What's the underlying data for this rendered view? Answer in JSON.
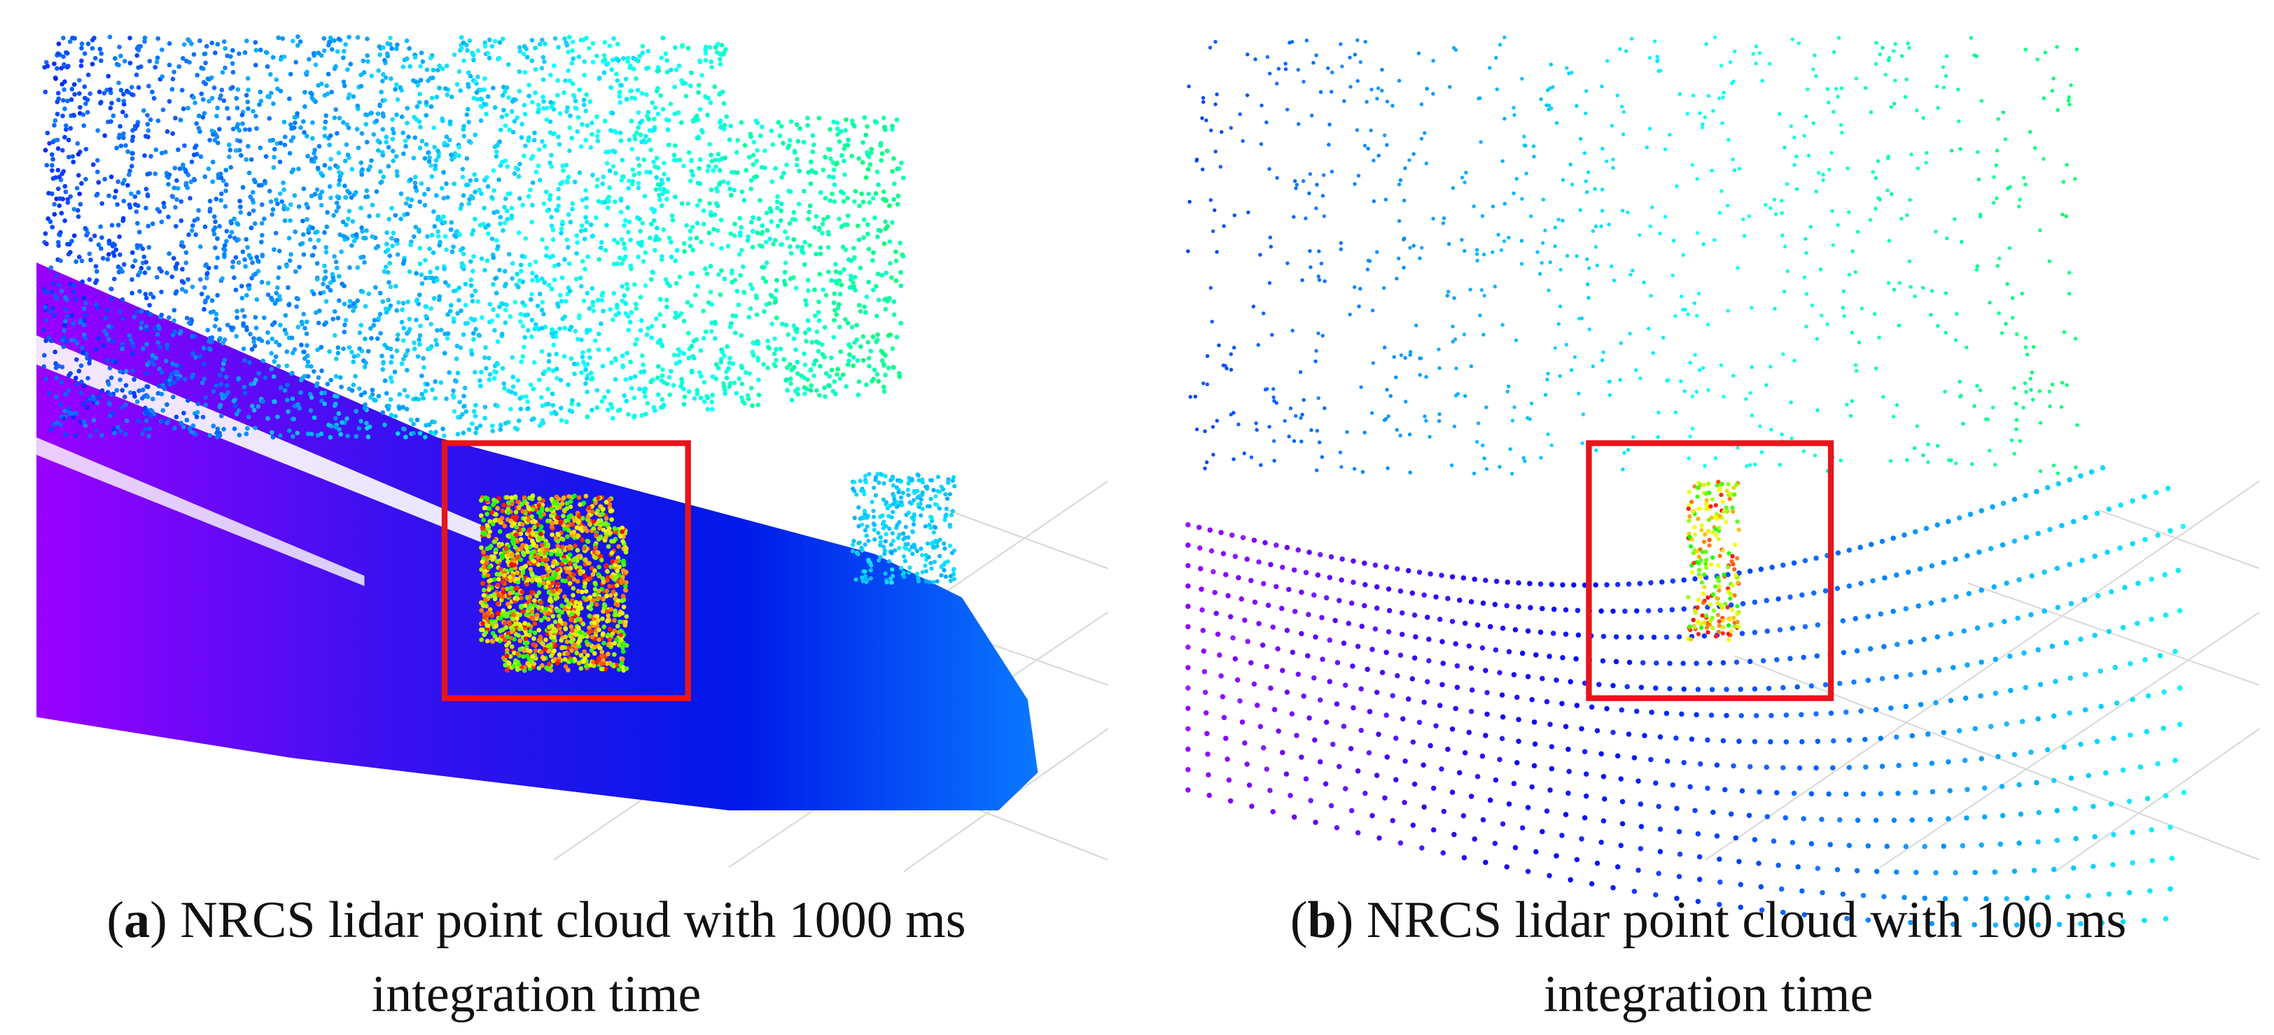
{
  "figure": {
    "panels": [
      {
        "caption_parts": [
          "(",
          "a",
          ") NRCS lidar point cloud with 1000 ms integration time"
        ]
      },
      {
        "caption_parts": [
          "(",
          "b",
          ") NRCS lidar point cloud with 100 ms integration time"
        ]
      }
    ]
  }
}
